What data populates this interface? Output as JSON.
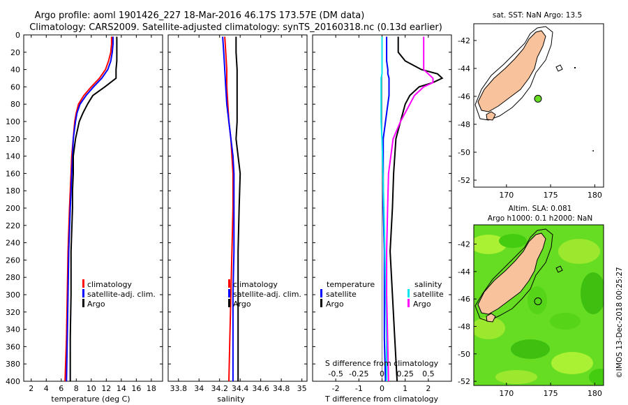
{
  "titles": {
    "line1": "Argo profile: aoml 1901426_227 18-Mar-2016 46.17S 173.57E (DM data)",
    "line2": "Climatology: CARS2009. Satellite-adjusted climatology: synTS_20160318.nc (0.13d earlier)"
  },
  "colors": {
    "climatology": "#ff0000",
    "satellite_adj": "#0000ff",
    "argo": "#000000",
    "salinity_sat": "#00e5ee",
    "salinity_argo": "#ff00ff",
    "land": "#f8c39c"
  },
  "chart_data": [
    {
      "type": "line",
      "id": "temperature",
      "xlabel": "temperature (deg C)",
      "ylabel": "depth",
      "xlim": [
        1,
        19.5
      ],
      "ylim": [
        400,
        0
      ],
      "x_ticks": [
        "2",
        "4",
        "6",
        "8",
        "10",
        "12",
        "14",
        "16",
        "18"
      ],
      "x_tick_values": [
        2,
        4,
        6,
        8,
        10,
        12,
        14,
        16,
        18
      ],
      "y_ticks": [
        "0",
        "20",
        "40",
        "60",
        "80",
        "100",
        "120",
        "140",
        "160",
        "180",
        "200",
        "220",
        "240",
        "260",
        "280",
        "300",
        "320",
        "340",
        "360",
        "380",
        "400"
      ],
      "legend": [
        "climatology",
        "satellite-adj. clim.",
        "Argo"
      ],
      "depth": [
        2,
        10,
        20,
        30,
        40,
        50,
        60,
        70,
        80,
        90,
        100,
        120,
        140,
        160,
        180,
        200,
        250,
        300,
        350,
        400
      ],
      "series": [
        {
          "name": "climatology",
          "values": [
            12.7,
            12.7,
            12.6,
            12.3,
            11.9,
            11.1,
            10.0,
            9.0,
            8.3,
            8.0,
            7.8,
            7.6,
            7.4,
            7.3,
            7.2,
            7.1,
            6.9,
            6.8,
            6.7,
            6.5
          ]
        },
        {
          "name": "satellite-adj. clim.",
          "values": [
            12.9,
            12.9,
            12.8,
            12.6,
            12.2,
            11.4,
            10.3,
            9.3,
            8.5,
            8.1,
            7.9,
            7.6,
            7.5,
            7.4,
            7.3,
            7.2,
            7.0,
            6.9,
            6.8,
            6.7
          ]
        },
        {
          "name": "Argo",
          "values": [
            13.4,
            13.4,
            13.4,
            13.4,
            13.3,
            13.3,
            11.8,
            10.2,
            9.5,
            8.9,
            8.4,
            7.9,
            7.6,
            7.6,
            7.5,
            7.5,
            7.3,
            7.3,
            7.2,
            7.2
          ]
        }
      ]
    },
    {
      "type": "line",
      "id": "salinity",
      "xlabel": "salinity",
      "ylabel": "depth",
      "xlim": [
        33.7,
        35.05
      ],
      "ylim": [
        400,
        0
      ],
      "x_ticks": [
        "33.8",
        "34",
        "34.2",
        "34.4",
        "34.6",
        "34.8",
        "35"
      ],
      "x_tick_values": [
        33.8,
        34,
        34.2,
        34.4,
        34.6,
        34.8,
        35
      ],
      "legend": [
        "climatology",
        "satellite-adj. clim.",
        "Argo"
      ],
      "depth": [
        2,
        20,
        40,
        60,
        80,
        100,
        120,
        140,
        160,
        200,
        250,
        300,
        350,
        400
      ],
      "series": [
        {
          "name": "climatology",
          "values": [
            34.25,
            34.26,
            34.27,
            34.27,
            34.28,
            34.29,
            34.31,
            34.32,
            34.33,
            34.33,
            34.32,
            34.31,
            34.3,
            34.29
          ]
        },
        {
          "name": "satellite-adj. clim.",
          "values": [
            34.23,
            34.24,
            34.25,
            34.26,
            34.27,
            34.29,
            34.31,
            34.33,
            34.34,
            34.34,
            34.34,
            34.33,
            34.33,
            34.33
          ]
        },
        {
          "name": "Argo",
          "values": [
            34.36,
            34.36,
            34.37,
            34.37,
            34.37,
            34.37,
            34.36,
            34.38,
            34.4,
            34.39,
            34.38,
            34.38,
            34.38,
            34.38
          ]
        }
      ]
    },
    {
      "type": "line",
      "id": "difference",
      "xlabel": "T difference from climatology",
      "x2label": "S difference from climatology",
      "xlim": [
        -3,
        3
      ],
      "ylim": [
        400,
        0
      ],
      "x_ticks": [
        "-2",
        "-1",
        "0",
        "1",
        "2"
      ],
      "x_tick_values": [
        -2,
        -1,
        0,
        1,
        2
      ],
      "x2_ticks": [
        "-0.5",
        "-0.25",
        "0",
        "0.25",
        "0.5"
      ],
      "x2_tick_values": [
        -0.5,
        -0.25,
        0,
        0.25,
        0.5
      ],
      "legend_temperature": [
        "temperature",
        "satellite",
        "Argo"
      ],
      "legend_salinity": [
        "salinity",
        "satellite",
        "Argo"
      ],
      "depth": [
        2,
        20,
        30,
        40,
        45,
        50,
        55,
        60,
        70,
        80,
        100,
        120,
        160,
        200,
        250,
        300,
        350,
        400
      ],
      "series": [
        {
          "name": "T satellite",
          "values": [
            0.2,
            0.2,
            0.2,
            0.25,
            0.25,
            0.3,
            0.3,
            0.3,
            0.3,
            0.25,
            0.15,
            0.05,
            0.05,
            0.05,
            0.1,
            0.1,
            0.1,
            0.15
          ]
        },
        {
          "name": "T Argo",
          "values": [
            0.7,
            0.7,
            1.0,
            1.7,
            2.4,
            2.6,
            2.2,
            1.6,
            1.2,
            1.0,
            0.8,
            0.6,
            0.5,
            0.45,
            0.35,
            0.45,
            0.55,
            0.65
          ]
        },
        {
          "name": "S satellite",
          "values": [
            0.0,
            0.0,
            0.0,
            0.0,
            0.0,
            -0.01,
            -0.01,
            -0.01,
            -0.01,
            -0.01,
            -0.01,
            0.0,
            0.01,
            0.02,
            0.03,
            0.04,
            0.05,
            0.05
          ]
        },
        {
          "name": "S Argo",
          "values": [
            0.45,
            0.45,
            0.45,
            0.45,
            0.5,
            0.55,
            0.55,
            0.45,
            0.35,
            0.3,
            0.2,
            0.12,
            0.07,
            0.06,
            0.05,
            0.05,
            0.06,
            0.07
          ]
        }
      ]
    },
    {
      "type": "map",
      "id": "sst_map",
      "title": "sat. SST: NaN Argo: 13.5",
      "lon_ticks": [
        "170",
        "175",
        "180"
      ],
      "lon_tick_values": [
        170,
        175,
        180
      ],
      "lat_ticks": [
        "-42",
        "-44",
        "-46",
        "-48",
        "-50",
        "-52"
      ],
      "lat_tick_values": [
        -42,
        -44,
        -46,
        -48,
        -50,
        -52
      ],
      "lon_range": [
        166.3,
        181
      ],
      "lat_range": [
        -52.5,
        -40.8
      ],
      "float_position": [
        173.57,
        -46.17
      ]
    },
    {
      "type": "map",
      "id": "sla_map",
      "title_line1": "Altim. SLA: 0.081",
      "title_line2": "Argo h1000: 0.1 h2000: NaN",
      "lon_ticks": [
        "170",
        "175",
        "180"
      ],
      "lon_tick_values": [
        170,
        175,
        180
      ],
      "lat_ticks": [
        "-42",
        "-44",
        "-46",
        "-48",
        "-50",
        "-52"
      ],
      "lat_tick_values": [
        -42,
        -44,
        -46,
        -48,
        -50,
        -52
      ],
      "lon_range": [
        166.3,
        181
      ],
      "lat_range": [
        -52.3,
        -40.6
      ],
      "float_position": [
        173.57,
        -46.17
      ]
    }
  ],
  "footer": {
    "credit": "©IMOS 13-Dec-2018 00:25:27"
  }
}
